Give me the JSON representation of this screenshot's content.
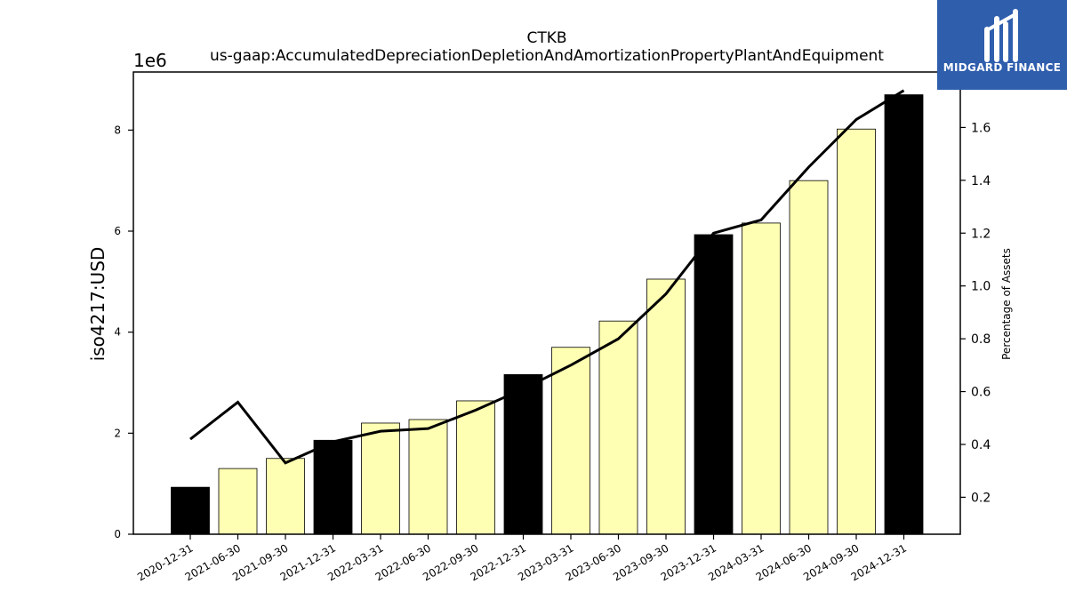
{
  "chart_data": {
    "type": "bar",
    "title": "CTKB",
    "subtitle": "us-gaap:AccumulatedDepreciationDepletionAndAmortizationPropertyPlantAndEquipment",
    "ylabel": "iso4217:USD",
    "ylabel_right": "Percentage of Assets",
    "y_offset_label": "1e6",
    "ylim": [
      0,
      9.15
    ],
    "yticks": [
      "0",
      "2",
      "4",
      "6",
      "8"
    ],
    "y2lim": [
      0.06,
      1.81
    ],
    "y2ticks": [
      "0.2",
      "0.4",
      "0.6",
      "0.8",
      "1.0",
      "1.2",
      "1.4",
      "1.6"
    ],
    "categories": [
      "2020-12-31",
      "2021-06-30",
      "2021-09-30",
      "2021-12-31",
      "2022-03-31",
      "2022-06-30",
      "2022-09-30",
      "2022-12-31",
      "2023-03-31",
      "2023-06-30",
      "2023-09-30",
      "2023-12-31",
      "2024-03-31",
      "2024-06-30",
      "2024-09-30",
      "2024-12-31"
    ],
    "series": [
      {
        "type": "bar",
        "values": [
          0.93,
          1.3,
          1.5,
          1.86,
          2.2,
          2.27,
          2.64,
          3.16,
          3.7,
          4.22,
          5.05,
          5.93,
          6.16,
          7.0,
          8.02,
          8.7
        ],
        "colors": [
          "#000000",
          "#ffffb3",
          "#ffffb3",
          "#000000",
          "#ffffb3",
          "#ffffb3",
          "#ffffb3",
          "#000000",
          "#ffffb3",
          "#ffffb3",
          "#ffffb3",
          "#000000",
          "#ffffb3",
          "#ffffb3",
          "#ffffb3",
          "#000000"
        ]
      },
      {
        "type": "line",
        "axis": "right",
        "color": "#000000",
        "values": [
          0.42,
          0.56,
          0.33,
          0.41,
          0.45,
          0.46,
          0.53,
          0.61,
          0.7,
          0.8,
          0.97,
          1.2,
          1.25,
          1.45,
          1.63,
          1.74
        ]
      }
    ],
    "grid": false
  },
  "logo": {
    "text": "MIDGARD FINANCE",
    "color": "#2f5ead"
  }
}
